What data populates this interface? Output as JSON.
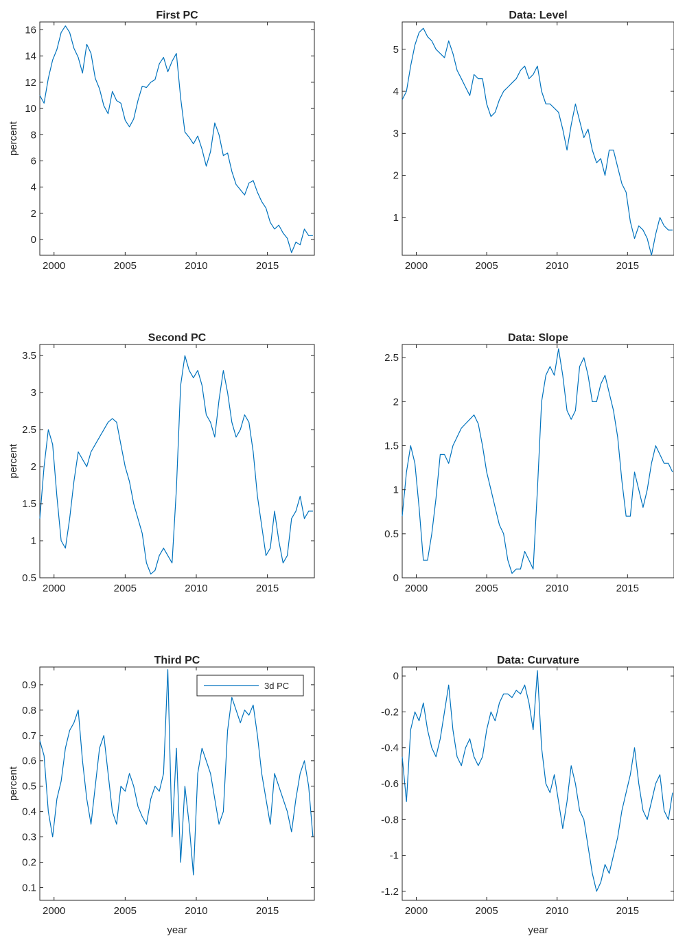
{
  "figure": {
    "series_color": "#0072BD"
  },
  "chart_data": [
    {
      "id": "first-pc",
      "type": "line",
      "title": "First PC",
      "xlabel": "",
      "ylabel": "percent",
      "xlim": [
        1999.0,
        2018.3
      ],
      "ylim": [
        -1.2,
        16.6
      ],
      "xticks": [
        2000,
        2005,
        2010,
        2015
      ],
      "yticks": [
        0,
        2,
        4,
        6,
        8,
        10,
        12,
        14,
        16
      ],
      "legend": null,
      "series": [
        {
          "color": "#0072BD",
          "x": [
            1999.0,
            1999.3,
            1999.6,
            1999.9,
            2000.2,
            2000.5,
            2000.8,
            2001.1,
            2001.4,
            2001.7,
            2002.0,
            2002.3,
            2002.6,
            2002.9,
            2003.2,
            2003.5,
            2003.8,
            2004.1,
            2004.4,
            2004.7,
            2005.0,
            2005.3,
            2005.6,
            2005.9,
            2006.2,
            2006.5,
            2006.8,
            2007.1,
            2007.4,
            2007.7,
            2008.0,
            2008.3,
            2008.6,
            2008.9,
            2009.2,
            2009.5,
            2009.8,
            2010.1,
            2010.4,
            2010.7,
            2011.0,
            2011.3,
            2011.6,
            2011.9,
            2012.2,
            2012.5,
            2012.8,
            2013.1,
            2013.4,
            2013.7,
            2014.0,
            2014.3,
            2014.6,
            2014.9,
            2015.2,
            2015.5,
            2015.8,
            2016.1,
            2016.4,
            2016.7,
            2017.0,
            2017.3,
            2017.6,
            2017.9,
            2018.2
          ],
          "y": [
            11.0,
            10.4,
            12.3,
            13.7,
            14.5,
            15.8,
            16.3,
            15.8,
            14.6,
            13.9,
            12.7,
            14.9,
            14.2,
            12.3,
            11.5,
            10.2,
            9.6,
            11.3,
            10.6,
            10.4,
            9.1,
            8.6,
            9.2,
            10.6,
            11.7,
            11.6,
            12.0,
            12.2,
            13.4,
            13.9,
            12.8,
            13.6,
            14.2,
            10.8,
            8.2,
            7.8,
            7.3,
            7.9,
            6.9,
            5.6,
            6.7,
            8.9,
            8.0,
            6.4,
            6.6,
            5.2,
            4.2,
            3.8,
            3.4,
            4.3,
            4.5,
            3.6,
            2.9,
            2.4,
            1.3,
            0.8,
            1.1,
            0.5,
            0.1,
            -1.0,
            -0.2,
            -0.4,
            0.8,
            0.3,
            0.3
          ]
        }
      ]
    },
    {
      "id": "data-level",
      "type": "line",
      "title": "Data: Level",
      "xlabel": "",
      "ylabel": "",
      "xlim": [
        1999.0,
        2018.3
      ],
      "ylim": [
        0.1,
        5.65
      ],
      "xticks": [
        2000,
        2005,
        2010,
        2015
      ],
      "yticks": [
        1,
        2,
        3,
        4,
        5
      ],
      "legend": null,
      "series": [
        {
          "color": "#0072BD",
          "x": [
            1999.0,
            1999.3,
            1999.6,
            1999.9,
            2000.2,
            2000.5,
            2000.8,
            2001.1,
            2001.4,
            2001.7,
            2002.0,
            2002.3,
            2002.6,
            2002.9,
            2003.2,
            2003.5,
            2003.8,
            2004.1,
            2004.4,
            2004.7,
            2005.0,
            2005.3,
            2005.6,
            2005.9,
            2006.2,
            2006.5,
            2006.8,
            2007.1,
            2007.4,
            2007.7,
            2008.0,
            2008.3,
            2008.6,
            2008.9,
            2009.2,
            2009.5,
            2009.8,
            2010.1,
            2010.4,
            2010.7,
            2011.0,
            2011.3,
            2011.6,
            2011.9,
            2012.2,
            2012.5,
            2012.8,
            2013.1,
            2013.4,
            2013.7,
            2014.0,
            2014.3,
            2014.6,
            2014.9,
            2015.2,
            2015.5,
            2015.8,
            2016.1,
            2016.4,
            2016.7,
            2017.0,
            2017.3,
            2017.6,
            2017.9,
            2018.2
          ],
          "y": [
            3.8,
            4.0,
            4.6,
            5.1,
            5.4,
            5.5,
            5.3,
            5.2,
            5.0,
            4.9,
            4.8,
            5.2,
            4.9,
            4.5,
            4.3,
            4.1,
            3.9,
            4.4,
            4.3,
            4.3,
            3.7,
            3.4,
            3.5,
            3.8,
            4.0,
            4.1,
            4.2,
            4.3,
            4.5,
            4.6,
            4.3,
            4.4,
            4.6,
            4.0,
            3.7,
            3.7,
            3.6,
            3.5,
            3.1,
            2.6,
            3.2,
            3.7,
            3.3,
            2.9,
            3.1,
            2.6,
            2.3,
            2.4,
            2.0,
            2.6,
            2.6,
            2.2,
            1.8,
            1.6,
            0.9,
            0.5,
            0.8,
            0.7,
            0.5,
            0.1,
            0.6,
            1.0,
            0.8,
            0.7,
            0.7
          ]
        }
      ]
    },
    {
      "id": "second-pc",
      "type": "line",
      "title": "Second PC",
      "xlabel": "",
      "ylabel": "percent",
      "xlim": [
        1999.0,
        2018.3
      ],
      "ylim": [
        0.5,
        3.65
      ],
      "xticks": [
        2000,
        2005,
        2010,
        2015
      ],
      "yticks": [
        0.5,
        1,
        1.5,
        2,
        2.5,
        3,
        3.5
      ],
      "legend": null,
      "series": [
        {
          "color": "#0072BD",
          "x": [
            1999.0,
            1999.3,
            1999.6,
            1999.9,
            2000.2,
            2000.5,
            2000.8,
            2001.1,
            2001.4,
            2001.7,
            2002.0,
            2002.3,
            2002.6,
            2002.9,
            2003.2,
            2003.5,
            2003.8,
            2004.1,
            2004.4,
            2004.7,
            2005.0,
            2005.3,
            2005.6,
            2005.9,
            2006.2,
            2006.5,
            2006.8,
            2007.1,
            2007.4,
            2007.7,
            2008.0,
            2008.3,
            2008.6,
            2008.9,
            2009.2,
            2009.5,
            2009.8,
            2010.1,
            2010.4,
            2010.7,
            2011.0,
            2011.3,
            2011.6,
            2011.9,
            2012.2,
            2012.5,
            2012.8,
            2013.1,
            2013.4,
            2013.7,
            2014.0,
            2014.3,
            2014.6,
            2014.9,
            2015.2,
            2015.5,
            2015.8,
            2016.1,
            2016.4,
            2016.7,
            2017.0,
            2017.3,
            2017.6,
            2017.9,
            2018.2
          ],
          "y": [
            1.3,
            2.0,
            2.5,
            2.3,
            1.6,
            1.0,
            0.9,
            1.3,
            1.8,
            2.2,
            2.1,
            2.0,
            2.2,
            2.3,
            2.4,
            2.5,
            2.6,
            2.65,
            2.6,
            2.3,
            2.0,
            1.8,
            1.5,
            1.3,
            1.1,
            0.7,
            0.55,
            0.6,
            0.8,
            0.9,
            0.8,
            0.7,
            1.7,
            3.1,
            3.5,
            3.3,
            3.2,
            3.3,
            3.1,
            2.7,
            2.6,
            2.4,
            2.9,
            3.3,
            3.0,
            2.6,
            2.4,
            2.5,
            2.7,
            2.6,
            2.2,
            1.6,
            1.2,
            0.8,
            0.9,
            1.4,
            1.0,
            0.7,
            0.8,
            1.3,
            1.4,
            1.6,
            1.3,
            1.4,
            1.4
          ]
        }
      ]
    },
    {
      "id": "data-slope",
      "type": "line",
      "title": "Data: Slope",
      "xlabel": "",
      "ylabel": "",
      "xlim": [
        1999.0,
        2018.3
      ],
      "ylim": [
        0.0,
        2.65
      ],
      "xticks": [
        2000,
        2005,
        2010,
        2015
      ],
      "yticks": [
        0,
        0.5,
        1,
        1.5,
        2,
        2.5
      ],
      "legend": null,
      "series": [
        {
          "color": "#0072BD",
          "x": [
            1999.0,
            1999.3,
            1999.6,
            1999.9,
            2000.2,
            2000.5,
            2000.8,
            2001.1,
            2001.4,
            2001.7,
            2002.0,
            2002.3,
            2002.6,
            2002.9,
            2003.2,
            2003.5,
            2003.8,
            2004.1,
            2004.4,
            2004.7,
            2005.0,
            2005.3,
            2005.6,
            2005.9,
            2006.2,
            2006.5,
            2006.8,
            2007.1,
            2007.4,
            2007.7,
            2008.0,
            2008.3,
            2008.6,
            2008.9,
            2009.2,
            2009.5,
            2009.8,
            2010.1,
            2010.4,
            2010.7,
            2011.0,
            2011.3,
            2011.6,
            2011.9,
            2012.2,
            2012.5,
            2012.8,
            2013.1,
            2013.4,
            2013.7,
            2014.0,
            2014.3,
            2014.6,
            2014.9,
            2015.2,
            2015.5,
            2015.8,
            2016.1,
            2016.4,
            2016.7,
            2017.0,
            2017.3,
            2017.6,
            2017.9,
            2018.2
          ],
          "y": [
            0.7,
            1.2,
            1.5,
            1.3,
            0.8,
            0.2,
            0.2,
            0.5,
            0.9,
            1.4,
            1.4,
            1.3,
            1.5,
            1.6,
            1.7,
            1.75,
            1.8,
            1.85,
            1.75,
            1.5,
            1.2,
            1.0,
            0.8,
            0.6,
            0.5,
            0.2,
            0.05,
            0.1,
            0.1,
            0.3,
            0.2,
            0.1,
            1.0,
            2.0,
            2.3,
            2.4,
            2.3,
            2.6,
            2.3,
            1.9,
            1.8,
            1.9,
            2.4,
            2.5,
            2.3,
            2.0,
            2.0,
            2.2,
            2.3,
            2.1,
            1.9,
            1.6,
            1.1,
            0.7,
            0.7,
            1.2,
            1.0,
            0.8,
            1.0,
            1.3,
            1.5,
            1.4,
            1.3,
            1.3,
            1.2
          ]
        }
      ]
    },
    {
      "id": "third-pc",
      "type": "line",
      "title": "Third PC",
      "xlabel": "year",
      "ylabel": "percent",
      "xlim": [
        1999.0,
        2018.3
      ],
      "ylim": [
        0.05,
        0.97
      ],
      "xticks": [
        2000,
        2005,
        2010,
        2015
      ],
      "yticks": [
        0.1,
        0.2,
        0.3,
        0.4,
        0.5,
        0.6,
        0.7,
        0.8,
        0.9
      ],
      "legend": {
        "position": "top-right",
        "entries": [
          "3d PC"
        ]
      },
      "series": [
        {
          "name": "3d PC",
          "color": "#0072BD",
          "x": [
            1999.0,
            1999.3,
            1999.6,
            1999.9,
            2000.2,
            2000.5,
            2000.8,
            2001.1,
            2001.4,
            2001.7,
            2002.0,
            2002.3,
            2002.6,
            2002.9,
            2003.2,
            2003.5,
            2003.8,
            2004.1,
            2004.4,
            2004.7,
            2005.0,
            2005.3,
            2005.6,
            2005.9,
            2006.2,
            2006.5,
            2006.8,
            2007.1,
            2007.4,
            2007.7,
            2008.0,
            2008.3,
            2008.6,
            2008.9,
            2009.2,
            2009.5,
            2009.8,
            2010.1,
            2010.4,
            2010.7,
            2011.0,
            2011.3,
            2011.6,
            2011.9,
            2012.2,
            2012.5,
            2012.8,
            2013.1,
            2013.4,
            2013.7,
            2014.0,
            2014.3,
            2014.6,
            2014.9,
            2015.2,
            2015.5,
            2015.8,
            2016.1,
            2016.4,
            2016.7,
            2017.0,
            2017.3,
            2017.6,
            2017.9,
            2018.2
          ],
          "y": [
            0.68,
            0.62,
            0.4,
            0.3,
            0.45,
            0.52,
            0.65,
            0.72,
            0.75,
            0.8,
            0.6,
            0.45,
            0.35,
            0.5,
            0.65,
            0.7,
            0.55,
            0.4,
            0.35,
            0.5,
            0.48,
            0.55,
            0.5,
            0.42,
            0.38,
            0.35,
            0.45,
            0.5,
            0.48,
            0.55,
            0.96,
            0.3,
            0.65,
            0.2,
            0.5,
            0.35,
            0.15,
            0.55,
            0.65,
            0.6,
            0.55,
            0.45,
            0.35,
            0.4,
            0.72,
            0.85,
            0.8,
            0.75,
            0.8,
            0.78,
            0.82,
            0.7,
            0.55,
            0.45,
            0.35,
            0.55,
            0.5,
            0.45,
            0.4,
            0.32,
            0.45,
            0.55,
            0.6,
            0.5,
            0.3
          ]
        }
      ]
    },
    {
      "id": "data-curvature",
      "type": "line",
      "title": "Data: Curvature",
      "xlabel": "year",
      "ylabel": "",
      "xlim": [
        1999.0,
        2018.3
      ],
      "ylim": [
        -1.25,
        0.05
      ],
      "xticks": [
        2000,
        2005,
        2010,
        2015
      ],
      "yticks": [
        -1.2,
        -1,
        -0.8,
        -0.6,
        -0.4,
        -0.2,
        0
      ],
      "legend": null,
      "series": [
        {
          "color": "#0072BD",
          "x": [
            1999.0,
            1999.3,
            1999.6,
            1999.9,
            2000.2,
            2000.5,
            2000.8,
            2001.1,
            2001.4,
            2001.7,
            2002.0,
            2002.3,
            2002.6,
            2002.9,
            2003.2,
            2003.5,
            2003.8,
            2004.1,
            2004.4,
            2004.7,
            2005.0,
            2005.3,
            2005.6,
            2005.9,
            2006.2,
            2006.5,
            2006.8,
            2007.1,
            2007.4,
            2007.7,
            2008.0,
            2008.3,
            2008.6,
            2008.9,
            2009.2,
            2009.5,
            2009.8,
            2010.1,
            2010.4,
            2010.7,
            2011.0,
            2011.3,
            2011.6,
            2011.9,
            2012.2,
            2012.5,
            2012.8,
            2013.1,
            2013.4,
            2013.7,
            2014.0,
            2014.3,
            2014.6,
            2014.9,
            2015.2,
            2015.5,
            2015.8,
            2016.1,
            2016.4,
            2016.7,
            2017.0,
            2017.3,
            2017.6,
            2017.9,
            2018.2
          ],
          "y": [
            -0.45,
            -0.7,
            -0.3,
            -0.2,
            -0.25,
            -0.15,
            -0.3,
            -0.4,
            -0.45,
            -0.35,
            -0.2,
            -0.05,
            -0.3,
            -0.45,
            -0.5,
            -0.4,
            -0.35,
            -0.45,
            -0.5,
            -0.45,
            -0.3,
            -0.2,
            -0.25,
            -0.15,
            -0.1,
            -0.1,
            -0.12,
            -0.08,
            -0.1,
            -0.05,
            -0.15,
            -0.3,
            0.03,
            -0.4,
            -0.6,
            -0.65,
            -0.55,
            -0.7,
            -0.85,
            -0.7,
            -0.5,
            -0.6,
            -0.75,
            -0.8,
            -0.95,
            -1.1,
            -1.2,
            -1.15,
            -1.05,
            -1.1,
            -1.0,
            -0.9,
            -0.75,
            -0.65,
            -0.55,
            -0.4,
            -0.6,
            -0.75,
            -0.8,
            -0.7,
            -0.6,
            -0.55,
            -0.75,
            -0.8,
            -0.65
          ]
        }
      ]
    }
  ]
}
